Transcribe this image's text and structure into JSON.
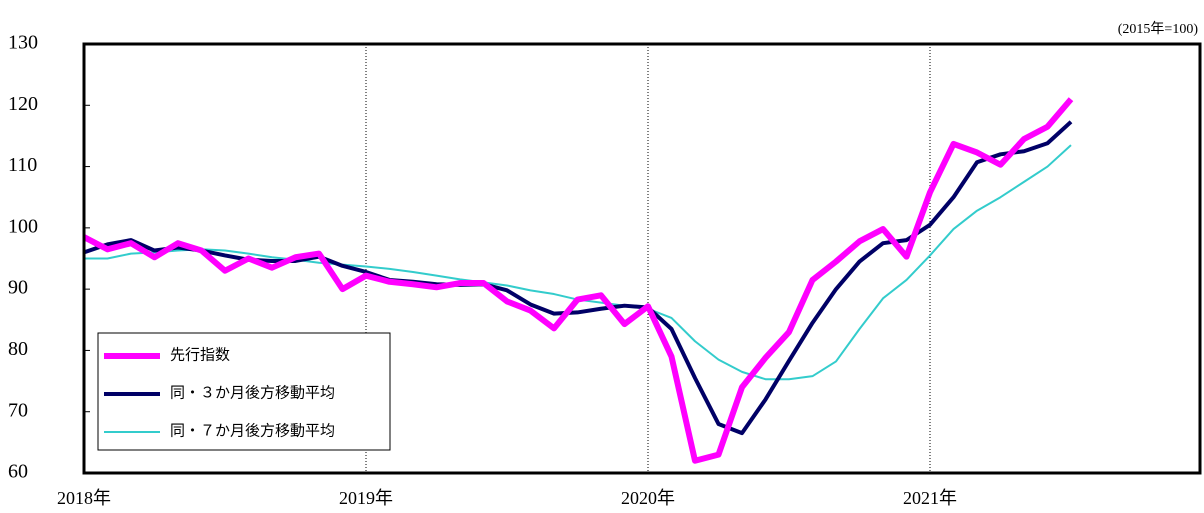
{
  "chart_data": {
    "type": "line",
    "unit_note": "(2015年=100)",
    "categories": [
      "2018年",
      null,
      null,
      null,
      null,
      null,
      null,
      null,
      null,
      null,
      null,
      null,
      "2019年",
      null,
      null,
      null,
      null,
      null,
      null,
      null,
      null,
      null,
      null,
      null,
      "2020年",
      null,
      null,
      null,
      null,
      null,
      null,
      null,
      null,
      null,
      null,
      null,
      "2021年",
      null,
      null,
      null,
      null,
      null,
      null
    ],
    "series": [
      {
        "name": "先行指数",
        "color": "#ff00ff",
        "values": [
          98.5,
          96.5,
          97.5,
          95.2,
          97.5,
          96.3,
          93.0,
          95.0,
          93.5,
          95.2,
          95.8,
          90.0,
          92.2,
          91.2,
          90.8,
          90.3,
          91.0,
          91.0,
          88.0,
          86.5,
          83.6,
          88.3,
          89.0,
          84.3,
          87.2,
          79.0,
          62.0,
          63.0,
          74.0,
          78.8,
          83.0,
          91.5,
          94.5,
          97.8,
          99.8,
          95.3,
          105.8,
          113.7,
          112.3,
          110.3,
          114.5,
          116.5,
          121.0
        ]
      },
      {
        "name": "同・３か月後方移動平均",
        "color": "#000066",
        "values": [
          96,
          97.3,
          98,
          96.3,
          96.8,
          96.3,
          95.5,
          94.8,
          94.6,
          94.6,
          95.3,
          93.8,
          92.8,
          91.5,
          91.2,
          90.8,
          90.7,
          90.8,
          89.8,
          87.5,
          86,
          86.2,
          86.8,
          87.3,
          87.0,
          83.5,
          75.5,
          68,
          66.5,
          72,
          78.3,
          84.5,
          90,
          94.5,
          97.5,
          98,
          100.5,
          105,
          110.7,
          112,
          112.5,
          113.8,
          117.3
        ]
      },
      {
        "name": "同・７か月後方移動平均",
        "color": "#33cccc",
        "values": [
          95,
          95,
          95.8,
          96,
          96.3,
          96.5,
          96.3,
          95.8,
          95.2,
          94.8,
          94.3,
          94,
          93.7,
          93.3,
          92.8,
          92.2,
          91.6,
          91.1,
          90.6,
          89.8,
          89.2,
          88.3,
          87.8,
          87.3,
          86.8,
          85.3,
          81.5,
          78.5,
          76.5,
          75.3,
          75.3,
          75.8,
          78.2,
          83.5,
          88.5,
          91.5,
          95.5,
          99.8,
          102.8,
          105,
          107.5,
          110,
          113.5
        ]
      }
    ],
    "ylim": [
      60,
      130
    ],
    "yticks": [
      60,
      70,
      80,
      90,
      100,
      110,
      120,
      130
    ]
  }
}
